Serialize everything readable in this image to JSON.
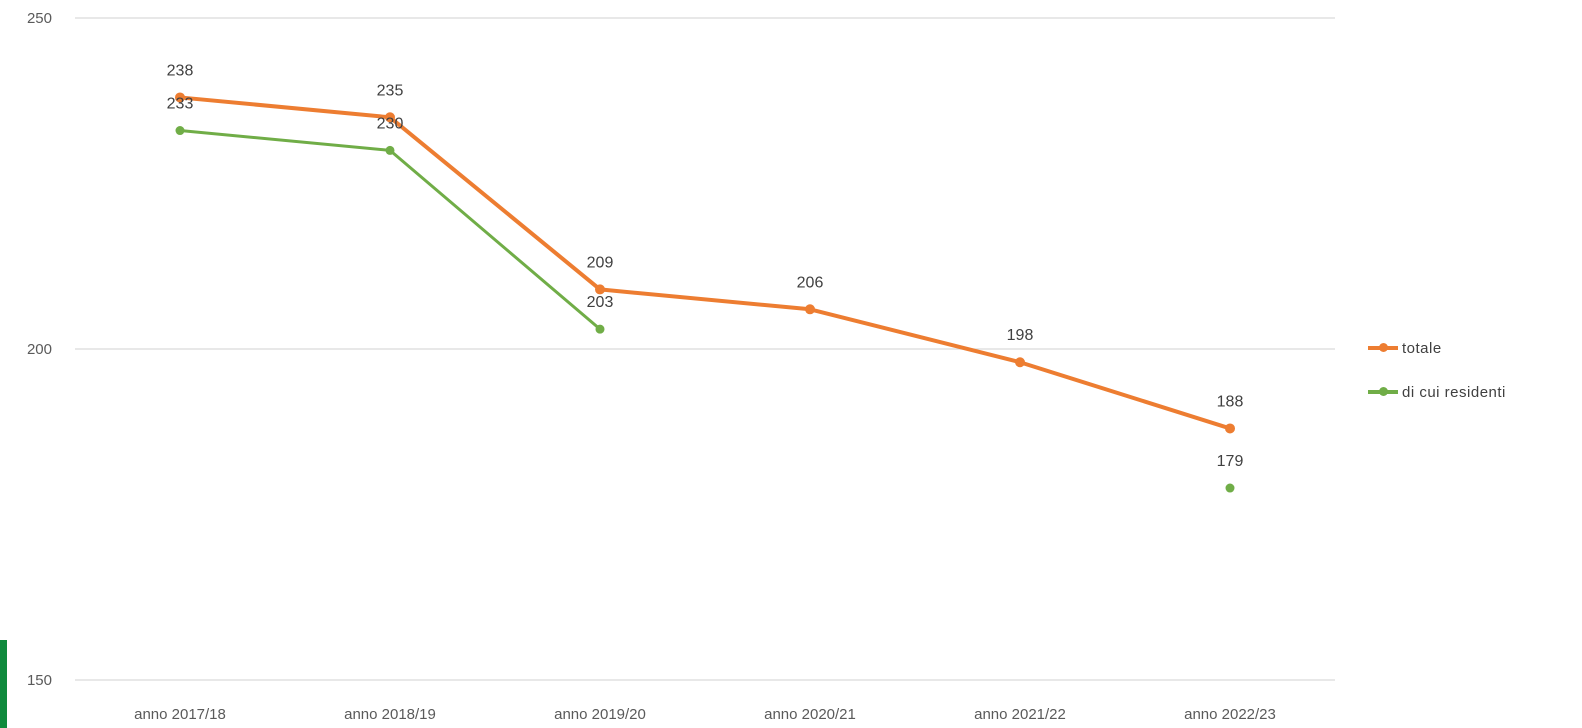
{
  "chart_data": {
    "type": "line",
    "title": "",
    "xlabel": "",
    "ylabel": "",
    "categories": [
      "anno 2017/18",
      "anno 2018/19",
      "anno 2019/20",
      "anno 2020/21",
      "anno 2021/22",
      "anno 2022/23"
    ],
    "ylim": [
      150,
      250
    ],
    "yticks": [
      150,
      200,
      250
    ],
    "grid": true,
    "legend_position": "right",
    "series": [
      {
        "name": "totale",
        "color": "#ED7D31",
        "values": [
          238,
          235,
          209,
          206,
          198,
          188
        ]
      },
      {
        "name": "di cui residenti",
        "color": "#70AD47",
        "values": [
          233,
          230,
          203,
          null,
          null,
          179
        ]
      }
    ]
  }
}
